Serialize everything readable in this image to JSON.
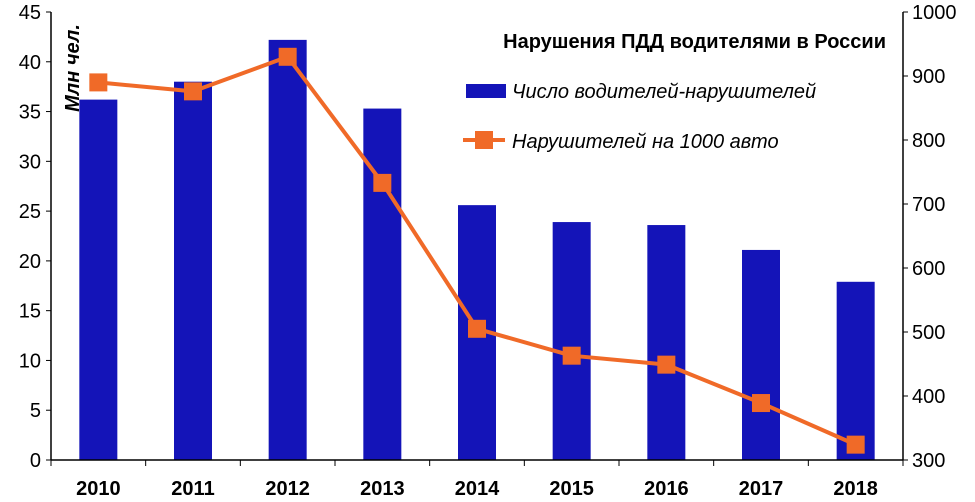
{
  "chart_data": {
    "type": "bar+line",
    "title": "Нарушения ПДД водителями в России",
    "categories": [
      "2010",
      "2011",
      "2012",
      "2013",
      "2014",
      "2015",
      "2016",
      "2017",
      "2018"
    ],
    "ylabel": "Млн чел.",
    "ylim": [
      0,
      45
    ],
    "y2lim": [
      300,
      1000
    ],
    "y_ticks": [
      "0",
      "5",
      "10",
      "15",
      "20",
      "25",
      "30",
      "35",
      "40",
      "45"
    ],
    "y2_ticks": [
      "300",
      "400",
      "500",
      "600",
      "700",
      "800",
      "900",
      "1000"
    ],
    "legend_position": "top-right",
    "grid": false,
    "series": [
      {
        "name": "Число водителей-нарушителей",
        "type": "bar",
        "axis": "left",
        "color": "#1414B8",
        "values": [
          36.2,
          38.0,
          42.2,
          35.3,
          25.6,
          23.9,
          23.6,
          21.1,
          17.9
        ]
      },
      {
        "name": "Нарушителей на 1000 авто",
        "type": "line",
        "axis": "right",
        "color": "#F06A28",
        "marker": "square",
        "values": [
          890,
          876,
          930,
          733,
          505,
          463,
          449,
          389,
          324
        ]
      }
    ]
  }
}
